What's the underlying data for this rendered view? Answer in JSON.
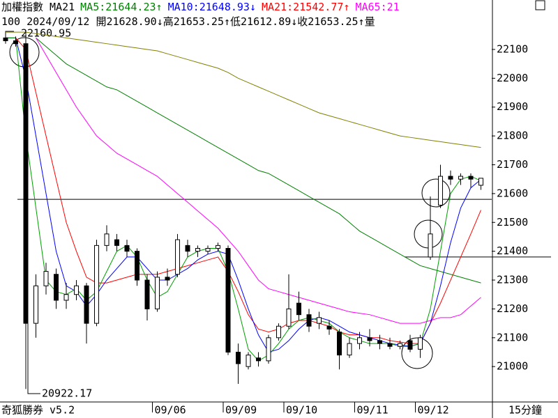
{
  "header": {
    "title": "加權指數 MA21",
    "indicators": [
      {
        "text": "MA5:21644.23",
        "arrow": "↑",
        "color": "#008000"
      },
      {
        "text": "MA10:21648.93",
        "arrow": "↓",
        "color": "#0000ff"
      },
      {
        "text": "MA21:21542.77",
        "arrow": "↑",
        "color": "#ff0000"
      },
      {
        "text": "MA65:21",
        "color": "#ff00ff"
      }
    ],
    "info": "100 2024/09/12 開21628.90↓高21653.25↑低21612.89↓收21653.25↑量"
  },
  "footer": {
    "app": "奇狐勝券 v5.2",
    "period": "15分鐘"
  },
  "chart_data": {
    "type": "candlestick",
    "categories": [
      null,
      null,
      null,
      null,
      null,
      null,
      null,
      null,
      null,
      null,
      null,
      null,
      null,
      null,
      null,
      "09/06",
      null,
      null,
      null,
      null,
      null,
      null,
      "09/09",
      null,
      null,
      null,
      null,
      null,
      "09/10",
      null,
      null,
      null,
      null,
      null,
      null,
      "09/11",
      null,
      null,
      null,
      null,
      null,
      "09/12",
      null,
      null,
      null,
      null,
      null,
      null
    ],
    "ohlc": [
      [
        22140,
        22150,
        22120,
        22130
      ],
      [
        22130,
        22145,
        22110,
        22120
      ],
      [
        22120,
        22160.95,
        20922.17,
        21150
      ],
      [
        21150,
        21320,
        21100,
        21280
      ],
      [
        21280,
        21360,
        21250,
        21330
      ],
      [
        21320,
        21340,
        21200,
        21230
      ],
      [
        21230,
        21290,
        21200,
        21250
      ],
      [
        21250,
        21300,
        21230,
        21280
      ],
      [
        21280,
        21290,
        21080,
        21150
      ],
      [
        21150,
        21440,
        21140,
        21420
      ],
      [
        21420,
        21490,
        21400,
        21460
      ],
      [
        21440,
        21460,
        21400,
        21420
      ],
      [
        21420,
        21440,
        21380,
        21400
      ],
      [
        21400,
        21410,
        21280,
        21300
      ],
      [
        21300,
        21320,
        21160,
        21200
      ],
      [
        21200,
        21330,
        21190,
        21310
      ],
      [
        21310,
        21340,
        21280,
        21300
      ],
      [
        21320,
        21460,
        21310,
        21440
      ],
      [
        21420,
        21440,
        21380,
        21400
      ],
      [
        21400,
        21420,
        21380,
        21410
      ],
      [
        21400,
        21420,
        21390,
        21410
      ],
      [
        21410,
        21430,
        21400,
        21420
      ],
      [
        21410,
        21420,
        21040,
        21050
      ],
      [
        21050,
        21080,
        20940,
        21010
      ],
      [
        21000,
        21050,
        20990,
        21040
      ],
      [
        21030,
        21050,
        21000,
        21020
      ],
      [
        21020,
        21110,
        21010,
        21100
      ],
      [
        21100,
        21150,
        21090,
        21140
      ],
      [
        21140,
        21320,
        21130,
        21200
      ],
      [
        21220,
        21260,
        21160,
        21180
      ],
      [
        21180,
        21200,
        21120,
        21140
      ],
      [
        21150,
        21190,
        21130,
        21170
      ],
      [
        21140,
        21160,
        21110,
        21130
      ],
      [
        21120,
        21130,
        20990,
        21040
      ],
      [
        21040,
        21100,
        21030,
        21080
      ],
      [
        21080,
        21120,
        21060,
        21100
      ],
      [
        21100,
        21130,
        21070,
        21090
      ],
      [
        21090,
        21110,
        21060,
        21080
      ],
      [
        21080,
        21100,
        21060,
        21070
      ],
      [
        21070,
        21090,
        21060,
        21080
      ],
      [
        21090,
        21110,
        21050,
        21060
      ],
      [
        21060,
        21110,
        21030,
        21100
      ],
      [
        21380,
        21590,
        21370,
        21460
      ],
      [
        21560,
        21700,
        21550,
        21660
      ],
      [
        21660,
        21680,
        21630,
        21650
      ],
      [
        21650,
        21670,
        21630,
        21660
      ],
      [
        21660,
        21670,
        21620,
        21650
      ],
      [
        21628.9,
        21653.25,
        21612.89,
        21653.25
      ]
    ],
    "series": [
      {
        "color": "#808000",
        "values": [
          22160,
          22160,
          22160,
          22155,
          22150,
          22145,
          22140,
          22135,
          22130,
          22125,
          22120,
          22115,
          22110,
          22105,
          22100,
          22095,
          22085,
          22075,
          22065,
          22055,
          22045,
          22035,
          22020,
          22000,
          21985,
          21970,
          21955,
          21940,
          21925,
          21910,
          21895,
          21880,
          21870,
          21860,
          21850,
          21840,
          21830,
          21820,
          21810,
          21800,
          21795,
          21790,
          21785,
          21780,
          21775,
          21770,
          21765,
          21760
        ]
      },
      {
        "color": "#008000",
        "values": [
          null,
          null,
          null,
          22140,
          22110,
          22080,
          22050,
          22030,
          22010,
          21990,
          21970,
          21960,
          21940,
          21920,
          21900,
          21880,
          21860,
          21840,
          21820,
          21800,
          21780,
          21760,
          21740,
          21720,
          21700,
          21680,
          21670,
          21650,
          21630,
          21610,
          21590,
          21570,
          21550,
          21530,
          21500,
          21470,
          21450,
          21430,
          21410,
          21390,
          21370,
          21350,
          21340,
          21330,
          21320,
          21310,
          21300,
          21290
        ]
      },
      {
        "color": "#ff00ff",
        "values": [
          null,
          null,
          null,
          22140,
          22080,
          22020,
          21960,
          21900,
          21850,
          21800,
          21770,
          21740,
          21720,
          21700,
          21680,
          21660,
          21630,
          21600,
          21570,
          21540,
          21510,
          21480,
          21440,
          21400,
          21350,
          21300,
          21270,
          21260,
          21250,
          21240,
          21230,
          21220,
          21210,
          21200,
          21190,
          21185,
          21180,
          21170,
          21160,
          21150,
          21150,
          21150,
          21160,
          21170,
          21170,
          21180,
          21210,
          21240
        ]
      },
      {
        "color": "#ff0000",
        "values": [
          22140,
          22140,
          22100,
          21950,
          21800,
          21650,
          21500,
          21400,
          21310,
          21290,
          21290,
          21300,
          21310,
          21320,
          21320,
          21320,
          21330,
          21340,
          21350,
          21360,
          21370,
          21380,
          21330,
          21260,
          21180,
          21130,
          21120,
          21130,
          21150,
          21160,
          21160,
          21150,
          21140,
          21120,
          21110,
          21110,
          21100,
          21100,
          21090,
          21085,
          21080,
          21080,
          21150,
          21220,
          21300,
          21380,
          21460,
          21542.77
        ]
      },
      {
        "color": "#0000ff",
        "values": [
          22140,
          22140,
          22000,
          21800,
          21600,
          21400,
          21280,
          21260,
          21210,
          21250,
          21300,
          21340,
          21380,
          21380,
          21340,
          21300,
          21300,
          21320,
          21340,
          21370,
          21390,
          21400,
          21390,
          21300,
          21200,
          21110,
          21050,
          21060,
          21090,
          21130,
          21160,
          21170,
          21160,
          21140,
          21120,
          21110,
          21100,
          21090,
          21080,
          21075,
          21070,
          21080,
          21150,
          21280,
          21430,
          21550,
          21620,
          21648.93
        ]
      },
      {
        "color": "#00a000",
        "values": [
          22140,
          22140,
          21800,
          21550,
          21300,
          21260,
          21250,
          21270,
          21230,
          21260,
          21330,
          21400,
          21420,
          21380,
          21300,
          21240,
          21260,
          21320,
          21380,
          21400,
          21410,
          21410,
          21330,
          21200,
          21060,
          21020,
          21040,
          21080,
          21130,
          21160,
          21170,
          21160,
          21150,
          21120,
          21100,
          21090,
          21080,
          21080,
          21080,
          21070,
          21070,
          21080,
          21200,
          21400,
          21600,
          21650,
          21660,
          21644.23
        ]
      }
    ],
    "hlines": [
      21580,
      21380
    ],
    "annotations": [
      "22160.95",
      "20922.17"
    ],
    "ylim": [
      20882,
      22228
    ],
    "yticks": [
      21000,
      21100,
      21200,
      21300,
      21400,
      21500,
      21600,
      21700,
      21800,
      21900,
      22000,
      22100
    ]
  }
}
